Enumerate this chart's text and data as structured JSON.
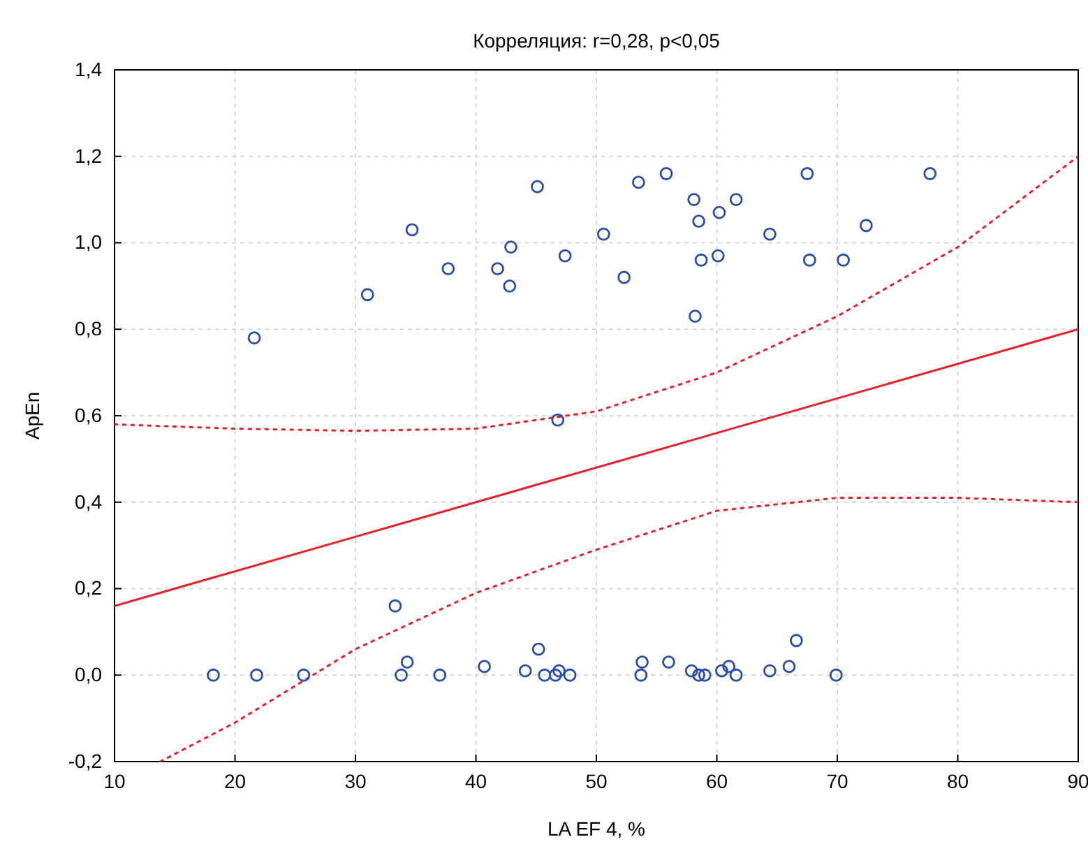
{
  "chart_data": {
    "type": "scatter",
    "title": "Корреляция: r=0,28, p<0,05",
    "xlabel": "LA EF 4, %",
    "ylabel": "ApEn",
    "xlim": [
      10,
      90
    ],
    "ylim": [
      -0.2,
      1.4
    ],
    "xticks": [
      10,
      20,
      30,
      40,
      50,
      60,
      70,
      80,
      90
    ],
    "yticks": [
      {
        "value": -0.2,
        "label": "-0,2"
      },
      {
        "value": 0,
        "label": "0,0"
      },
      {
        "value": 0.2,
        "label": "0,2"
      },
      {
        "value": 0.4,
        "label": "0,4"
      },
      {
        "value": 0.6,
        "label": "0,6"
      },
      {
        "value": 0.8,
        "label": "0,8"
      },
      {
        "value": 1.0,
        "label": "1,0"
      },
      {
        "value": 1.2,
        "label": "1,2"
      },
      {
        "value": 1.4,
        "label": "1,4"
      }
    ],
    "grid": true,
    "series": [
      {
        "color": "#2b4fa8",
        "marker": "circle",
        "x": [
          21.6,
          31.0,
          34.7,
          37.7,
          41.8,
          42.8,
          42.9,
          45.1,
          47.4,
          46.8,
          50.6,
          52.3,
          53.5,
          55.8,
          58.1,
          58.5,
          58.7,
          58.2,
          60.1,
          60.2,
          61.6,
          64.4,
          67.5,
          67.7,
          70.5,
          72.4,
          77.7,
          18.2,
          21.8,
          25.7,
          33.3,
          33.8,
          34.3,
          37.0,
          40.7,
          44.1,
          45.2,
          45.7,
          46.6,
          46.9,
          47.8,
          53.7,
          53.8,
          56.0,
          57.9,
          58.5,
          59.0,
          60.4,
          61.0,
          61.6,
          64.4,
          66.0,
          66.6,
          69.9
        ],
        "values": [
          0.78,
          0.88,
          1.03,
          0.94,
          0.94,
          0.9,
          0.99,
          1.13,
          0.97,
          0.59,
          1.02,
          0.92,
          1.14,
          1.16,
          1.1,
          1.05,
          0.96,
          0.83,
          0.97,
          1.07,
          1.1,
          1.02,
          1.16,
          0.96,
          0.96,
          1.04,
          1.16,
          0.0,
          0.0,
          0.0,
          0.16,
          0.0,
          0.03,
          0.0,
          0.02,
          0.01,
          0.06,
          0.0,
          0.0,
          0.01,
          0.0,
          0.0,
          0.03,
          0.03,
          0.01,
          0.0,
          0.0,
          0.01,
          0.02,
          0.0,
          0.01,
          0.02,
          0.08,
          0.0
        ]
      },
      {
        "type": "line",
        "color": "#e8202a",
        "line_style": "solid",
        "x": [
          10,
          90
        ],
        "values": [
          0.16,
          0.8
        ]
      },
      {
        "type": "line",
        "color": "#e8202a",
        "line_style": "dotted",
        "x": [
          10,
          20,
          30,
          40,
          50,
          60,
          70,
          80,
          90
        ],
        "values": [
          0.58,
          0.57,
          0.565,
          0.57,
          0.61,
          0.7,
          0.83,
          0.99,
          1.2
        ]
      },
      {
        "type": "line",
        "color": "#e8202a",
        "line_style": "dotted",
        "x": [
          13.8,
          20,
          30,
          40,
          50,
          60,
          70,
          80,
          90
        ],
        "values": [
          -0.2,
          -0.11,
          0.06,
          0.19,
          0.29,
          0.38,
          0.41,
          0.41,
          0.4
        ]
      }
    ]
  }
}
